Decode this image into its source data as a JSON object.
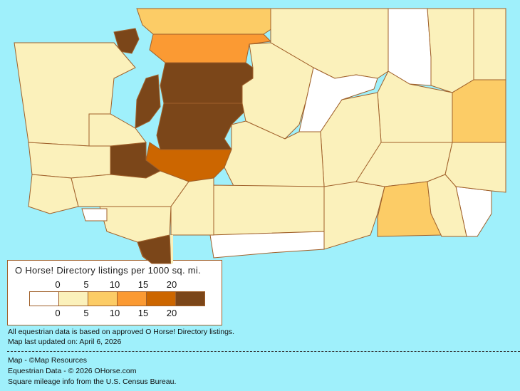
{
  "legend": {
    "title": "O Horse! Directory listings per 1000 sq. mi.",
    "top_ticks": [
      "0",
      "5",
      "10",
      "15",
      "20"
    ],
    "bottom_ticks": [
      "0",
      "5",
      "10",
      "15",
      "20"
    ],
    "bins": [
      {
        "range": "0",
        "color": "#ffffff"
      },
      {
        "range": "0-5",
        "color": "#fbf1bb"
      },
      {
        "range": "5-10",
        "color": "#fccc66"
      },
      {
        "range": "10-15",
        "color": "#fb9a33"
      },
      {
        "range": "15-20",
        "color": "#cc6600"
      },
      {
        "range": "20+",
        "color": "#7b4619"
      }
    ]
  },
  "colors": {
    "water": "#9ff0fb",
    "border": "#a0602a"
  },
  "region_levels": [
    2,
    3,
    5,
    5,
    5,
    4,
    5,
    5,
    1,
    0,
    1,
    1,
    2,
    1,
    1,
    0,
    1,
    1,
    1,
    0,
    1,
    1,
    2,
    0,
    1,
    1,
    5,
    1,
    1,
    1,
    1,
    1,
    1,
    0,
    1
  ],
  "notes": {
    "data_basis": "All equestrian data is based on approved O Horse! Directory listings.",
    "updated": "Map last updated on: April 6, 2026",
    "map_credit": "Map - ©Map Resources",
    "data_credit": "Equestrian Data - © 2026 OHorse.com",
    "census_credit": "Square mileage info from the U.S. Census Bureau."
  }
}
